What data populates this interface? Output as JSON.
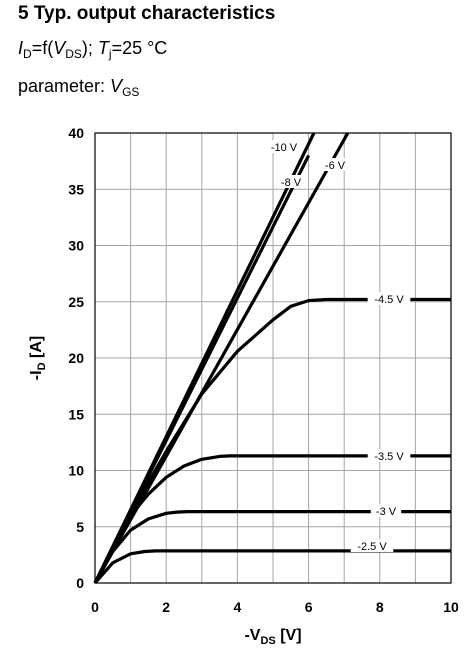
{
  "chart_data": {
    "type": "line",
    "title": "5 Typ. output characteristics",
    "subtitle": {
      "pre": "I",
      "pre_sub": "D",
      "mid": "=f(",
      "var": "V",
      "var_sub": "DS",
      "mid2": "); ",
      "temp": "T",
      "temp_sub": "j",
      "post": "=25 °C"
    },
    "parameter": {
      "pre": "parameter: ",
      "var": "V",
      "var_sub": "GS"
    },
    "xlabel": {
      "pre": "-V",
      "sub": "DS",
      "post": " [V]"
    },
    "ylabel": {
      "pre": "-I",
      "sub": "D",
      "post": " [A]"
    },
    "xlim": [
      0,
      10
    ],
    "ylim": [
      0,
      40
    ],
    "xticks": [
      0,
      2,
      4,
      6,
      8,
      10
    ],
    "yticks": [
      0,
      5,
      10,
      15,
      20,
      25,
      30,
      35,
      40
    ],
    "grid": true,
    "series": [
      {
        "name": "-10 V",
        "x": [
          0,
          6.15
        ],
        "y": [
          0,
          40
        ]
      },
      {
        "name": "-8 V",
        "x": [
          0,
          6.0
        ],
        "y": [
          0,
          38
        ]
      },
      {
        "name": "-6 V",
        "x": [
          0,
          7.1
        ],
        "y": [
          0,
          40
        ]
      },
      {
        "name": "-4.5 V",
        "x": [
          0,
          1,
          2,
          3,
          4,
          5,
          5.5,
          6,
          6.5,
          7,
          10
        ],
        "y": [
          0,
          6.2,
          11.7,
          16.8,
          20.6,
          23.4,
          24.6,
          25.1,
          25.2,
          25.2,
          25.2
        ]
      },
      {
        "name": "-3.5 V",
        "x": [
          0,
          0.5,
          1,
          1.5,
          2,
          2.5,
          3,
          3.5,
          3.8,
          10
        ],
        "y": [
          0,
          3.2,
          6.0,
          7.9,
          9.4,
          10.4,
          11.0,
          11.25,
          11.3,
          11.3
        ]
      },
      {
        "name": "-3 V",
        "x": [
          0,
          0.5,
          1,
          1.5,
          2,
          2.3,
          2.6,
          10
        ],
        "y": [
          0,
          2.8,
          4.7,
          5.7,
          6.2,
          6.3,
          6.35,
          6.35
        ]
      },
      {
        "name": "-2.5 V",
        "x": [
          0,
          0.5,
          1,
          1.4,
          1.7,
          10
        ],
        "y": [
          0,
          1.8,
          2.6,
          2.8,
          2.85,
          2.85
        ]
      }
    ],
    "annotations": [
      {
        "text": "-10 V",
        "series": "-10 V"
      },
      {
        "text": "-8 V",
        "series": "-8 V"
      },
      {
        "text": "-6 V",
        "series": "-6 V"
      },
      {
        "text": "-4.5 V",
        "series": "-4.5 V"
      },
      {
        "text": "-3.5 V",
        "series": "-3.5 V"
      },
      {
        "text": "-3 V",
        "series": "-3 V"
      },
      {
        "text": "-2.5 V",
        "series": "-2.5 V"
      }
    ]
  }
}
